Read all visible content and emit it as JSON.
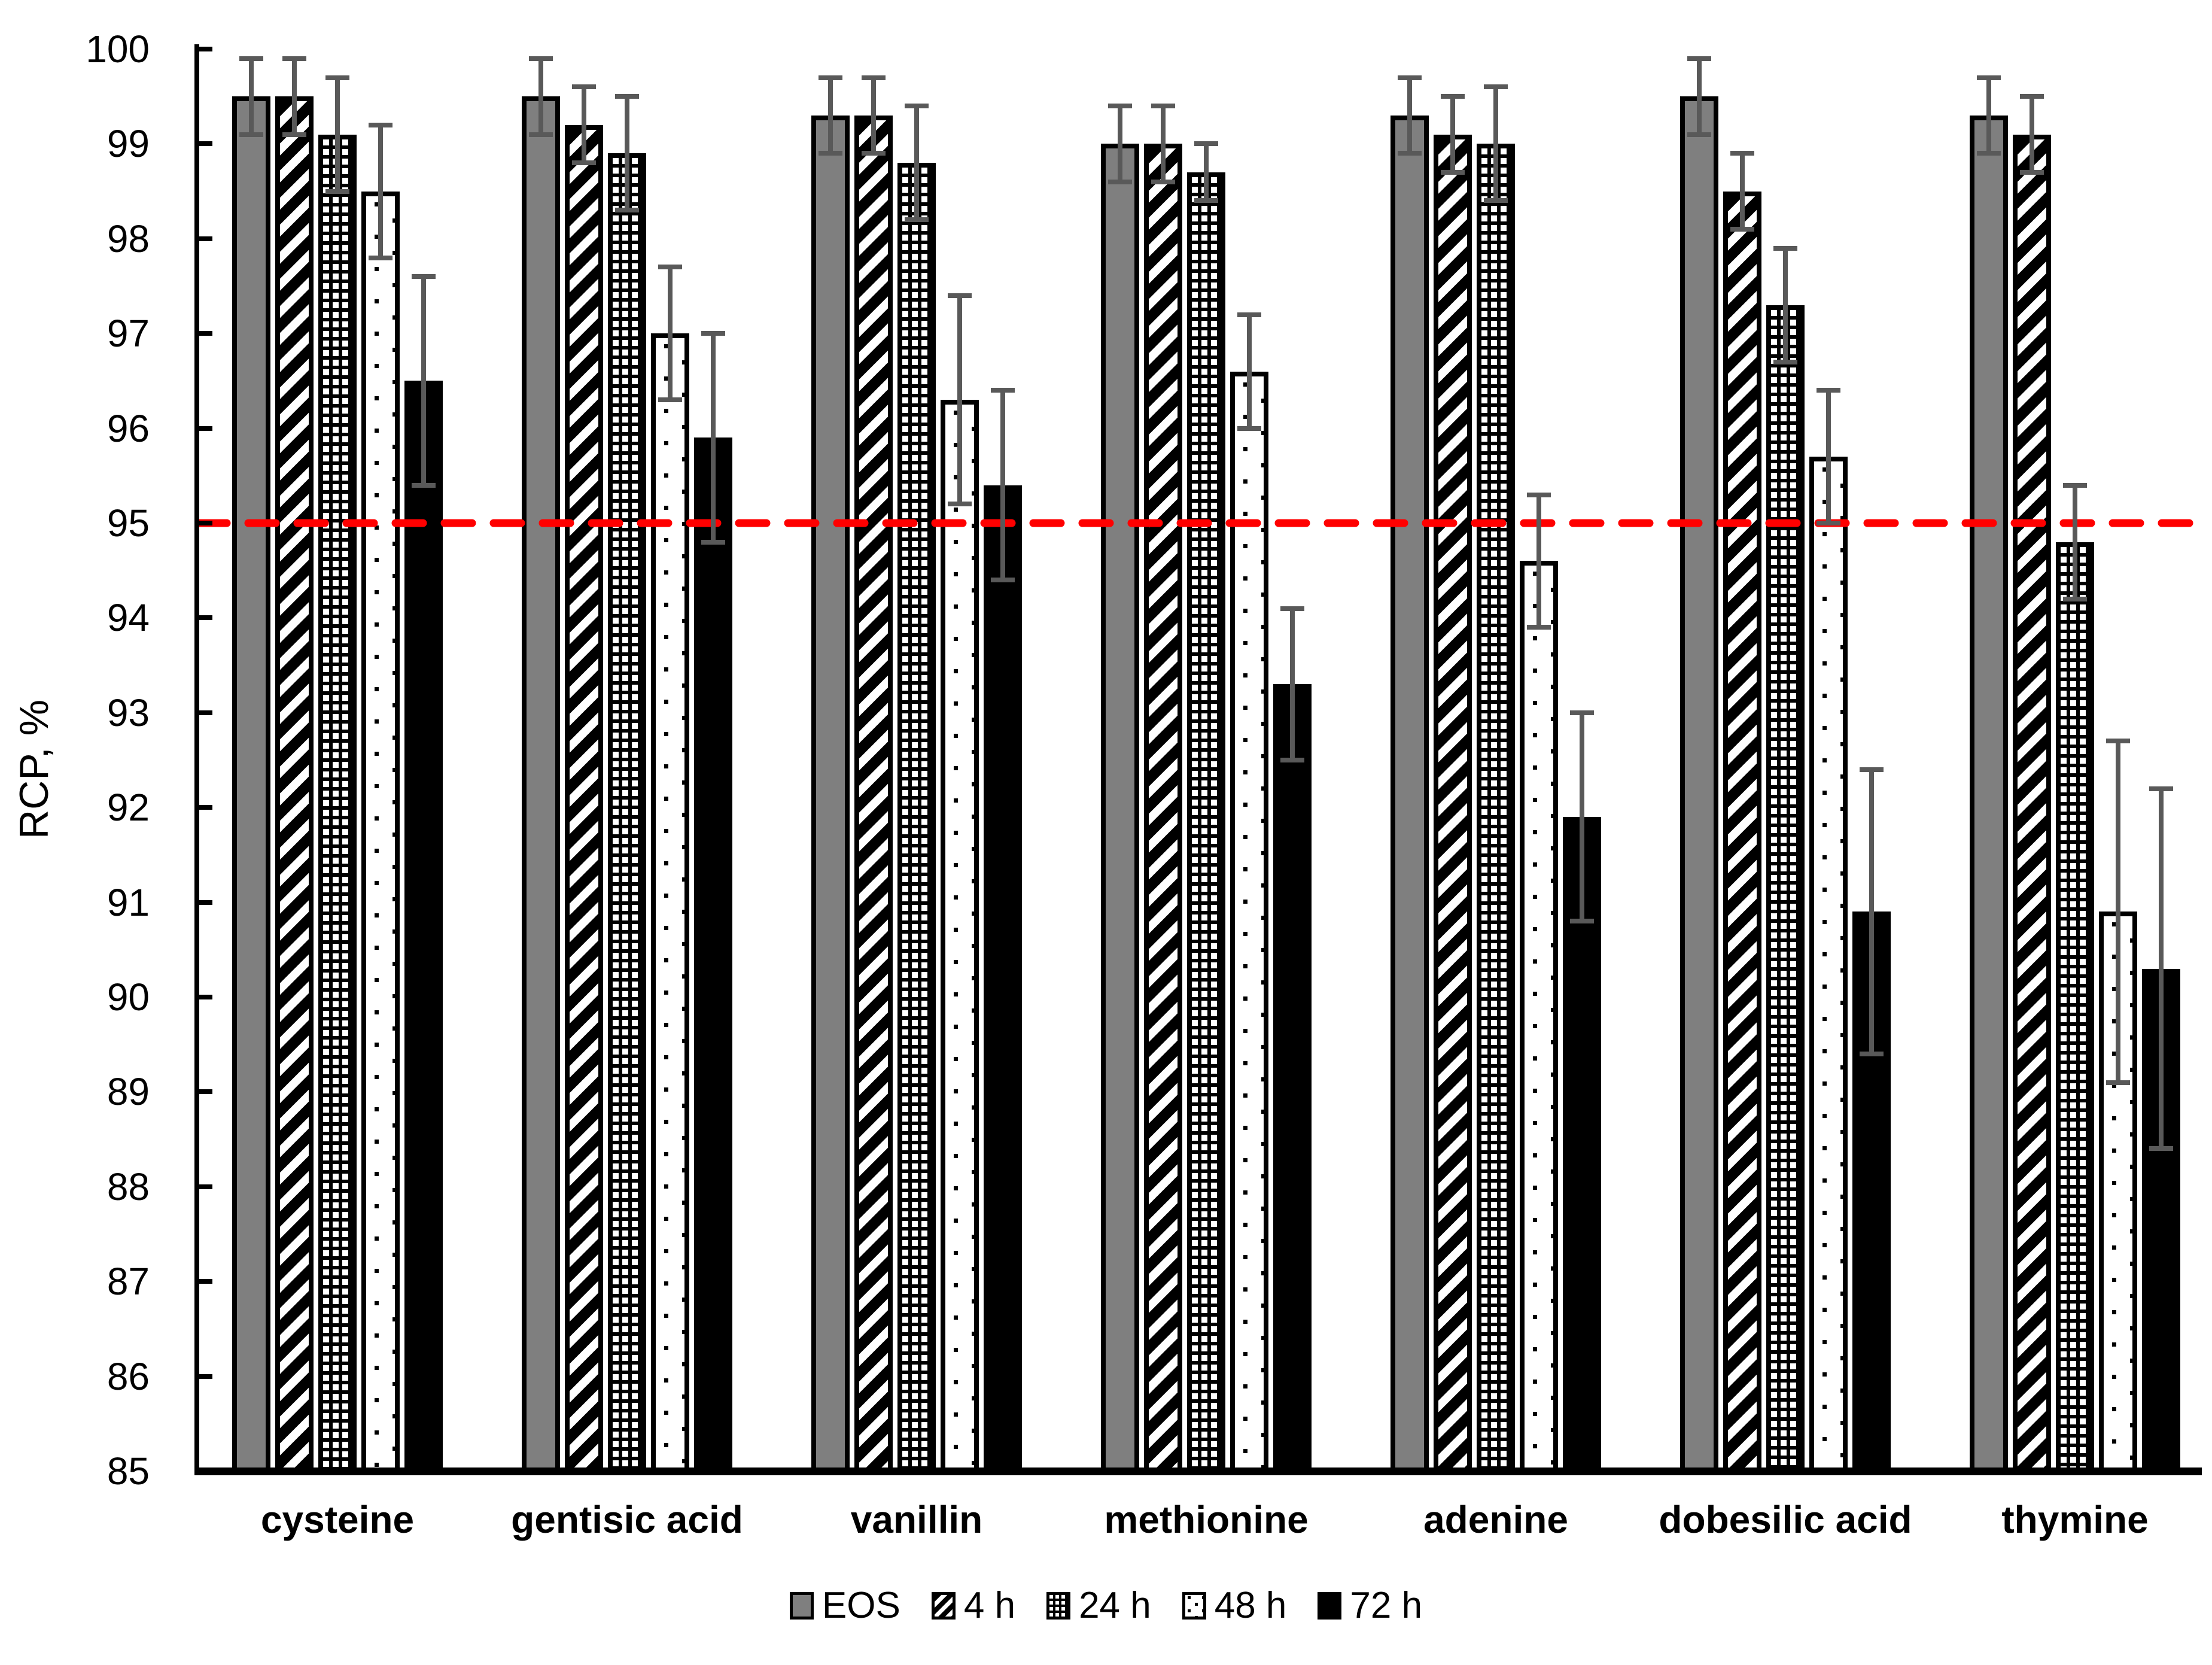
{
  "chart_data": {
    "type": "bar",
    "title": "",
    "ylabel": "RCP, %",
    "xlabel": "",
    "ylim": [
      85,
      100
    ],
    "y_tick_step": 1,
    "y_ticks": [
      "100",
      "99",
      "98",
      "97",
      "96",
      "95",
      "94",
      "93",
      "92",
      "91",
      "90",
      "89",
      "88",
      "87",
      "86",
      "85"
    ],
    "grid": false,
    "categories": [
      "cysteine",
      "gentisic acid",
      "vanillin",
      "methionine",
      "adenine",
      "dobesilic acid",
      "thymine"
    ],
    "series": [
      {
        "name": "EOS",
        "pattern": "solid-gray",
        "values": [
          99.5,
          99.5,
          99.3,
          99.0,
          99.3,
          99.5,
          99.3
        ],
        "errors": [
          0.4,
          0.4,
          0.4,
          0.4,
          0.4,
          0.4,
          0.4
        ]
      },
      {
        "name": "4 h",
        "pattern": "diagonal-stripes",
        "values": [
          99.5,
          99.2,
          99.3,
          99.0,
          99.1,
          98.5,
          99.1
        ],
        "errors": [
          0.4,
          0.4,
          0.4,
          0.4,
          0.4,
          0.4,
          0.4
        ]
      },
      {
        "name": "24 h",
        "pattern": "checker-grid",
        "values": [
          99.1,
          98.9,
          98.8,
          98.7,
          99.0,
          97.3,
          94.8
        ],
        "errors": [
          0.6,
          0.6,
          0.6,
          0.3,
          0.6,
          0.6,
          0.6
        ]
      },
      {
        "name": "48 h",
        "pattern": "sparse-dots",
        "values": [
          98.5,
          97.0,
          96.3,
          96.6,
          94.6,
          95.7,
          90.9
        ],
        "errors": [
          0.7,
          0.7,
          1.1,
          0.6,
          0.7,
          0.7,
          1.8
        ]
      },
      {
        "name": "72 h",
        "pattern": "solid-black",
        "values": [
          96.5,
          95.9,
          95.4,
          93.3,
          91.9,
          90.9,
          90.3
        ],
        "errors": [
          1.1,
          1.1,
          1.0,
          0.8,
          1.1,
          1.5,
          1.9
        ]
      }
    ],
    "error_bars": true,
    "reference_line": {
      "value": 95,
      "style": "dashed",
      "color": "#FF0000"
    },
    "legend": {
      "position": "bottom",
      "labels": [
        "EOS",
        "4 h",
        "24 h",
        "48 h",
        "72 h"
      ]
    },
    "colors": {
      "eos_fill": "#7F7F7F",
      "pattern_black": "#000000",
      "pattern_white": "#FFFFFF",
      "error_bar": "#595959",
      "reference": "#FF0000",
      "axis": "#000000",
      "background": "#FFFFFF"
    }
  }
}
